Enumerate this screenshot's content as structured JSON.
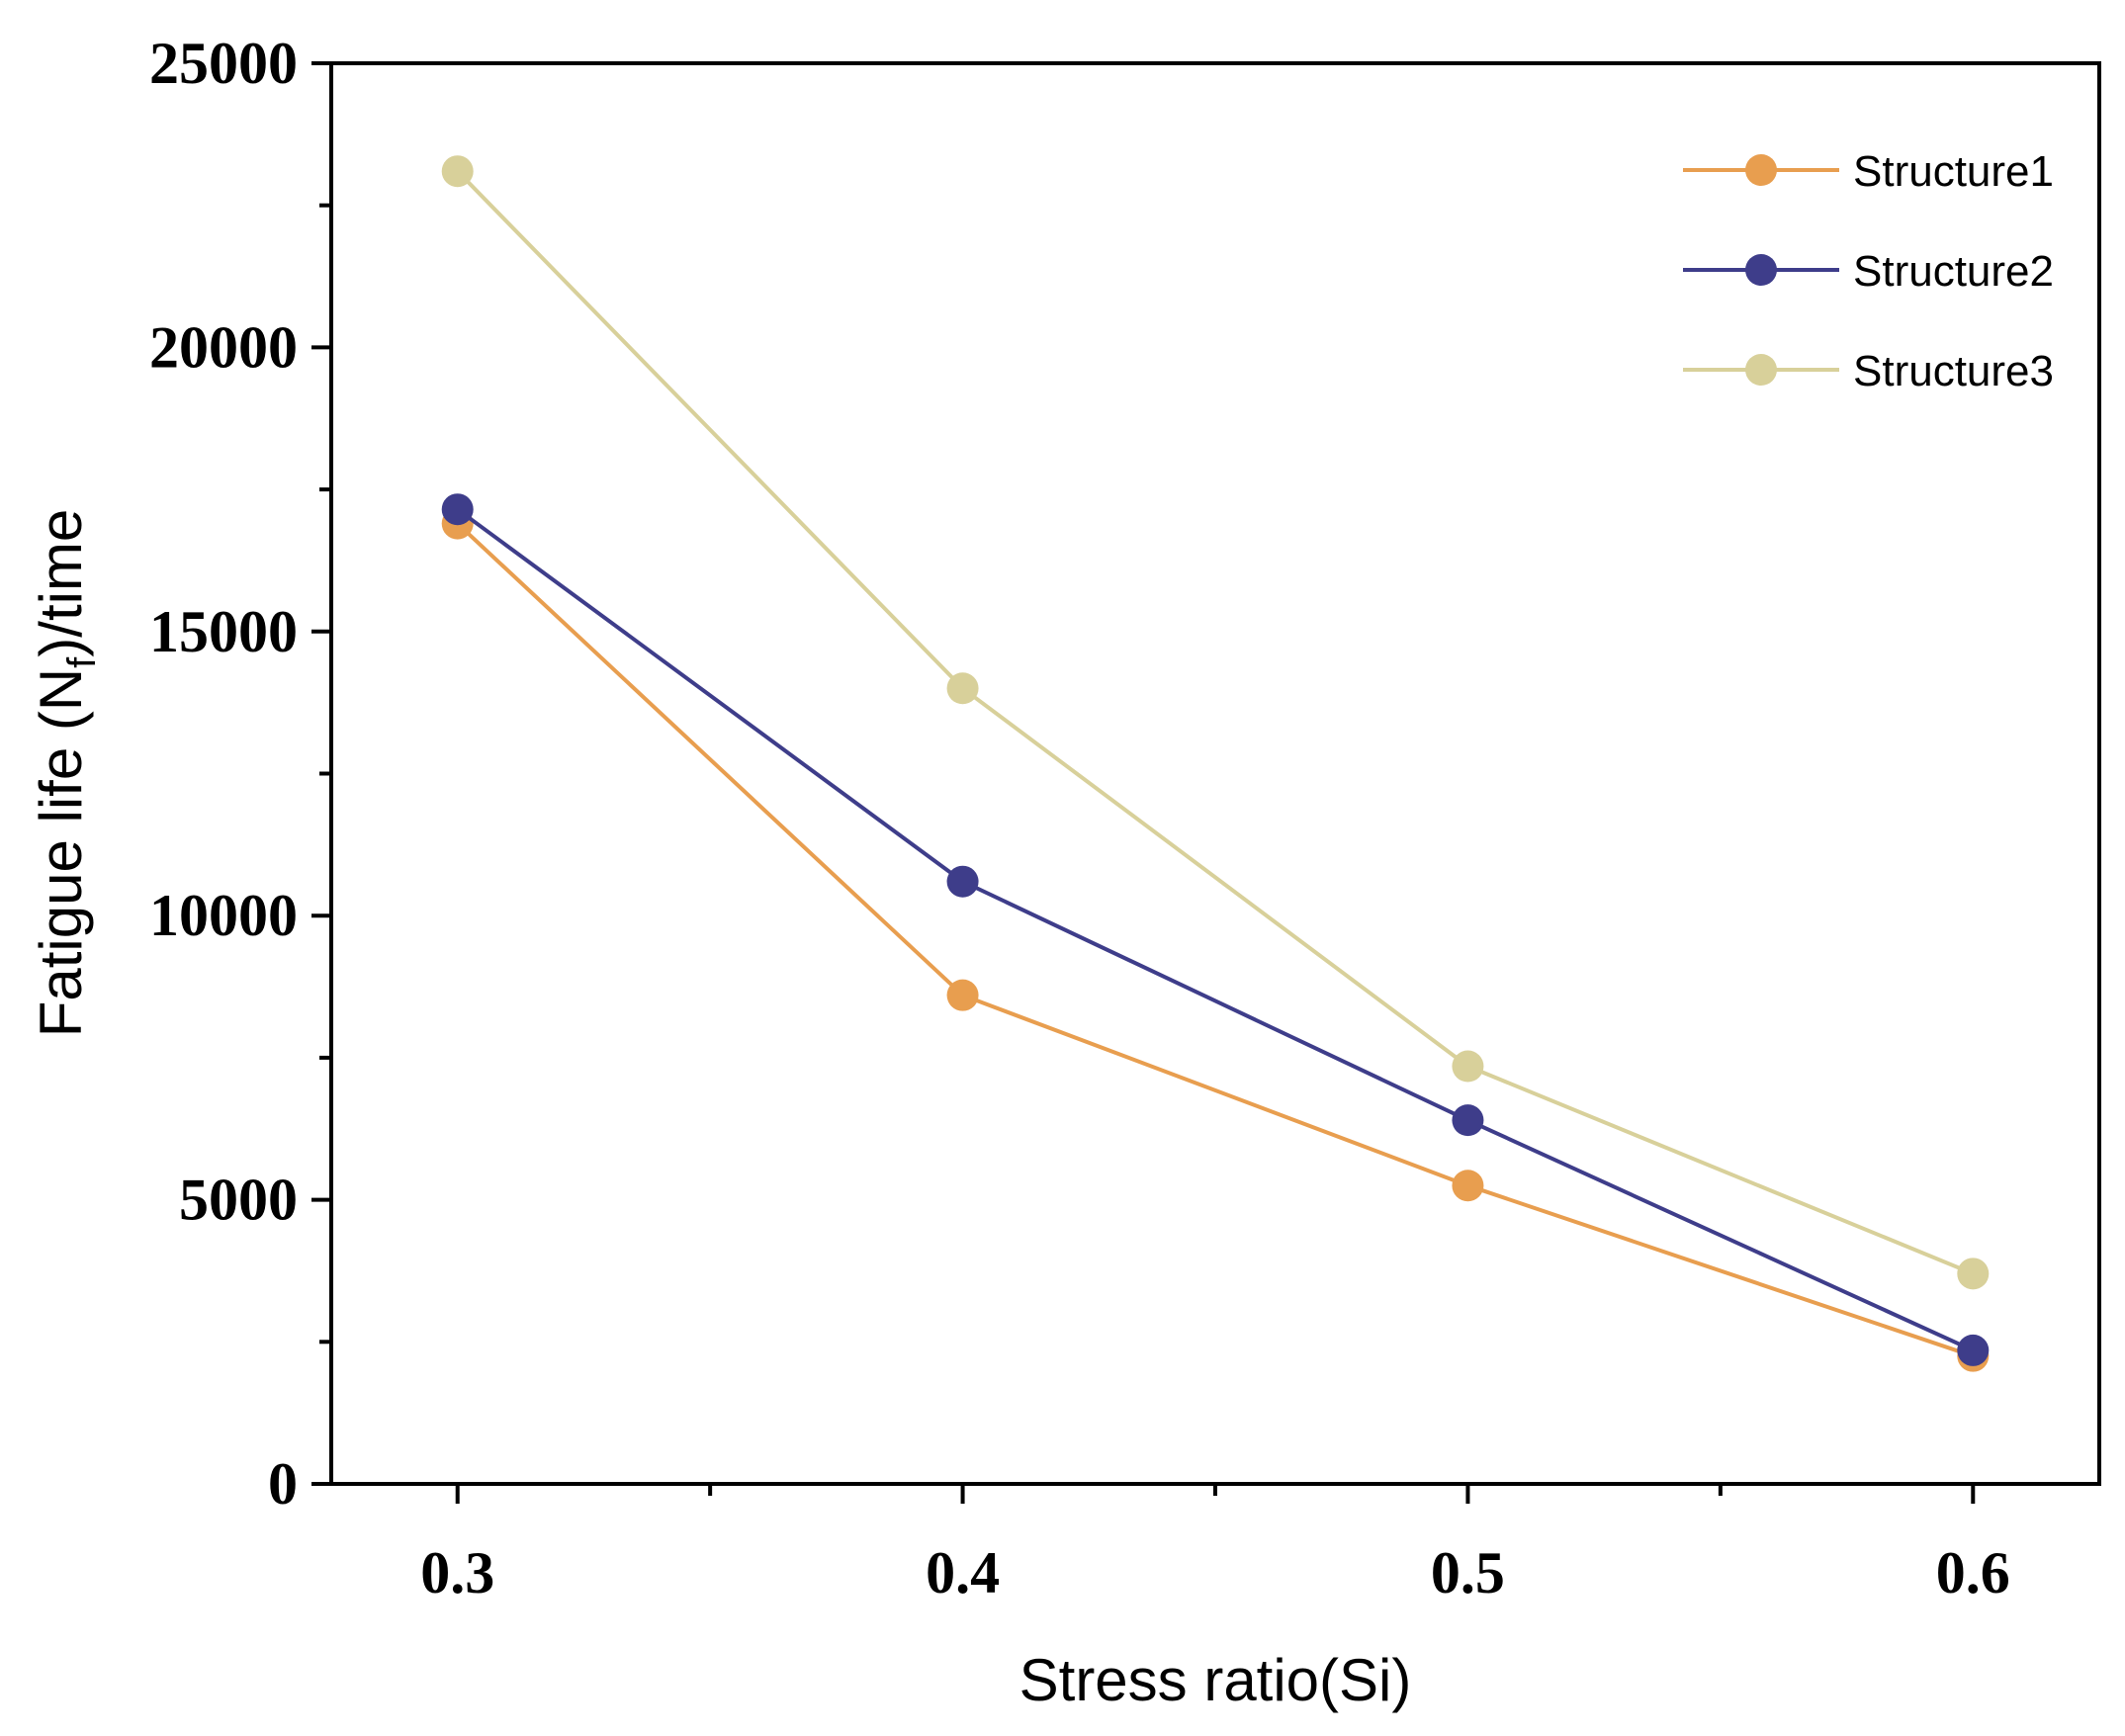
{
  "chart_data": {
    "type": "line",
    "title": "",
    "xlabel": "Stress ratio(Si)",
    "ylabel": "Fatigue life (N",
    "ylabel_subscript": "f",
    "ylabel_suffix": ")/time",
    "x": [
      0.3,
      0.4,
      0.5,
      0.6
    ],
    "x_tick_labels": [
      "0.3",
      "0.4",
      "0.5",
      "0.6"
    ],
    "y_tick_labels": [
      "0",
      "5000",
      "10000",
      "15000",
      "20000",
      "25000"
    ],
    "y_ticks": [
      0,
      5000,
      10000,
      15000,
      20000,
      25000
    ],
    "xlim": [
      0.275,
      0.625
    ],
    "ylim": [
      0,
      25000
    ],
    "grid": false,
    "legend_position": "top-right",
    "series": [
      {
        "name": "Structure1",
        "color": "#E89E4F",
        "values": [
          16900,
          8600,
          5250,
          2250
        ]
      },
      {
        "name": "Structure2",
        "color": "#3E3D8A",
        "values": [
          17150,
          10600,
          6400,
          2350
        ]
      },
      {
        "name": "Structure3",
        "color": "#D8D09A",
        "values": [
          23100,
          14000,
          7350,
          3700
        ]
      }
    ]
  }
}
